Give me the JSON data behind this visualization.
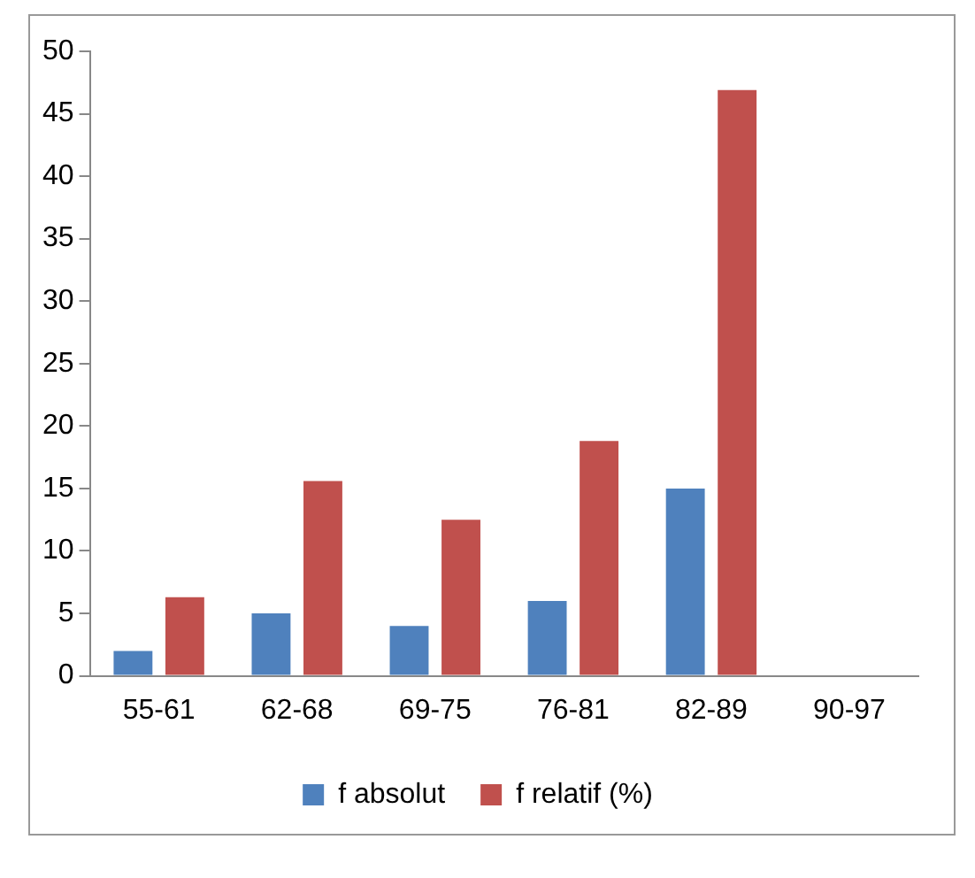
{
  "chart_data": {
    "type": "bar",
    "categories": [
      "55-61",
      "62-68",
      "69-75",
      "76-81",
      "82-89",
      "90-97"
    ],
    "series": [
      {
        "name": "f absolut",
        "color": "#4f81bd",
        "values": [
          2,
          5,
          4,
          6,
          15,
          0
        ]
      },
      {
        "name": "f relatif (%)",
        "color": "#c0504d",
        "values": [
          6.3,
          15.6,
          12.5,
          18.8,
          46.9,
          0
        ]
      }
    ],
    "ylim": [
      0,
      50
    ],
    "yticks": [
      0,
      5,
      10,
      15,
      20,
      25,
      30,
      35,
      40,
      45,
      50
    ],
    "grid": false,
    "legend": "bottom"
  }
}
